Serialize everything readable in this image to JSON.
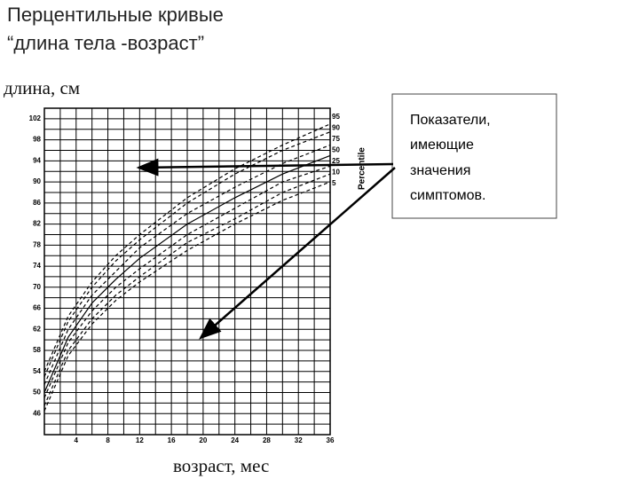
{
  "chart_data": {
    "type": "line",
    "title_lines": [
      "Перцентильные кривые",
      "“длина тела -возраст”"
    ],
    "y_label": "длина, см",
    "x_label": "возраст, мес",
    "legend_title": "Percentile",
    "callout": [
      "Показатели,",
      "имеющие",
      "значения",
      "симптомов."
    ],
    "x": [
      0,
      3,
      6,
      9,
      12,
      18,
      24,
      30,
      36
    ],
    "series": [
      {
        "name": "95",
        "color": "#000",
        "dashed": true,
        "values": [
          54,
          64.5,
          71,
          76,
          80,
          87,
          92.5,
          97,
          101
        ]
      },
      {
        "name": "90",
        "color": "#000",
        "dashed": true,
        "values": [
          53,
          63.5,
          70,
          75,
          79,
          86,
          91.5,
          96,
          99.5
        ]
      },
      {
        "name": "75",
        "color": "#000",
        "dashed": true,
        "values": [
          51.5,
          62,
          68.5,
          73,
          77.5,
          84,
          89,
          93.5,
          97
        ]
      },
      {
        "name": "50",
        "color": "#000",
        "dashed": false,
        "values": [
          50,
          60.5,
          67,
          71.5,
          75.5,
          82,
          87,
          91.5,
          95
        ]
      },
      {
        "name": "25",
        "color": "#000",
        "dashed": true,
        "values": [
          49,
          59.5,
          65.5,
          70,
          73.5,
          80,
          85,
          90,
          93
        ]
      },
      {
        "name": "10",
        "color": "#000",
        "dashed": true,
        "values": [
          47.5,
          58,
          64,
          68.5,
          72,
          78.5,
          83,
          88,
          91.5
        ]
      },
      {
        "name": "5",
        "color": "#000",
        "dashed": true,
        "values": [
          46.5,
          57,
          63,
          67.5,
          71,
          77,
          82,
          86.5,
          90
        ]
      }
    ],
    "xlim": [
      0,
      36
    ],
    "ylim": [
      42,
      104
    ],
    "xticks": [
      4,
      8,
      12,
      16,
      20,
      24,
      28,
      32,
      36
    ],
    "yticks": [
      46,
      50,
      54,
      58,
      62,
      66,
      70,
      74,
      78,
      82,
      86,
      90,
      94,
      98,
      102
    ],
    "xgrid": [
      0,
      2,
      4,
      6,
      8,
      10,
      12,
      14,
      16,
      18,
      20,
      22,
      24,
      26,
      28,
      30,
      32,
      34,
      36
    ],
    "ygrid": [
      42,
      44,
      46,
      48,
      50,
      52,
      54,
      56,
      58,
      60,
      62,
      64,
      66,
      68,
      70,
      72,
      74,
      76,
      78,
      80,
      82,
      84,
      86,
      88,
      90,
      92,
      94,
      96,
      98,
      100,
      102,
      104
    ],
    "grid": true
  }
}
